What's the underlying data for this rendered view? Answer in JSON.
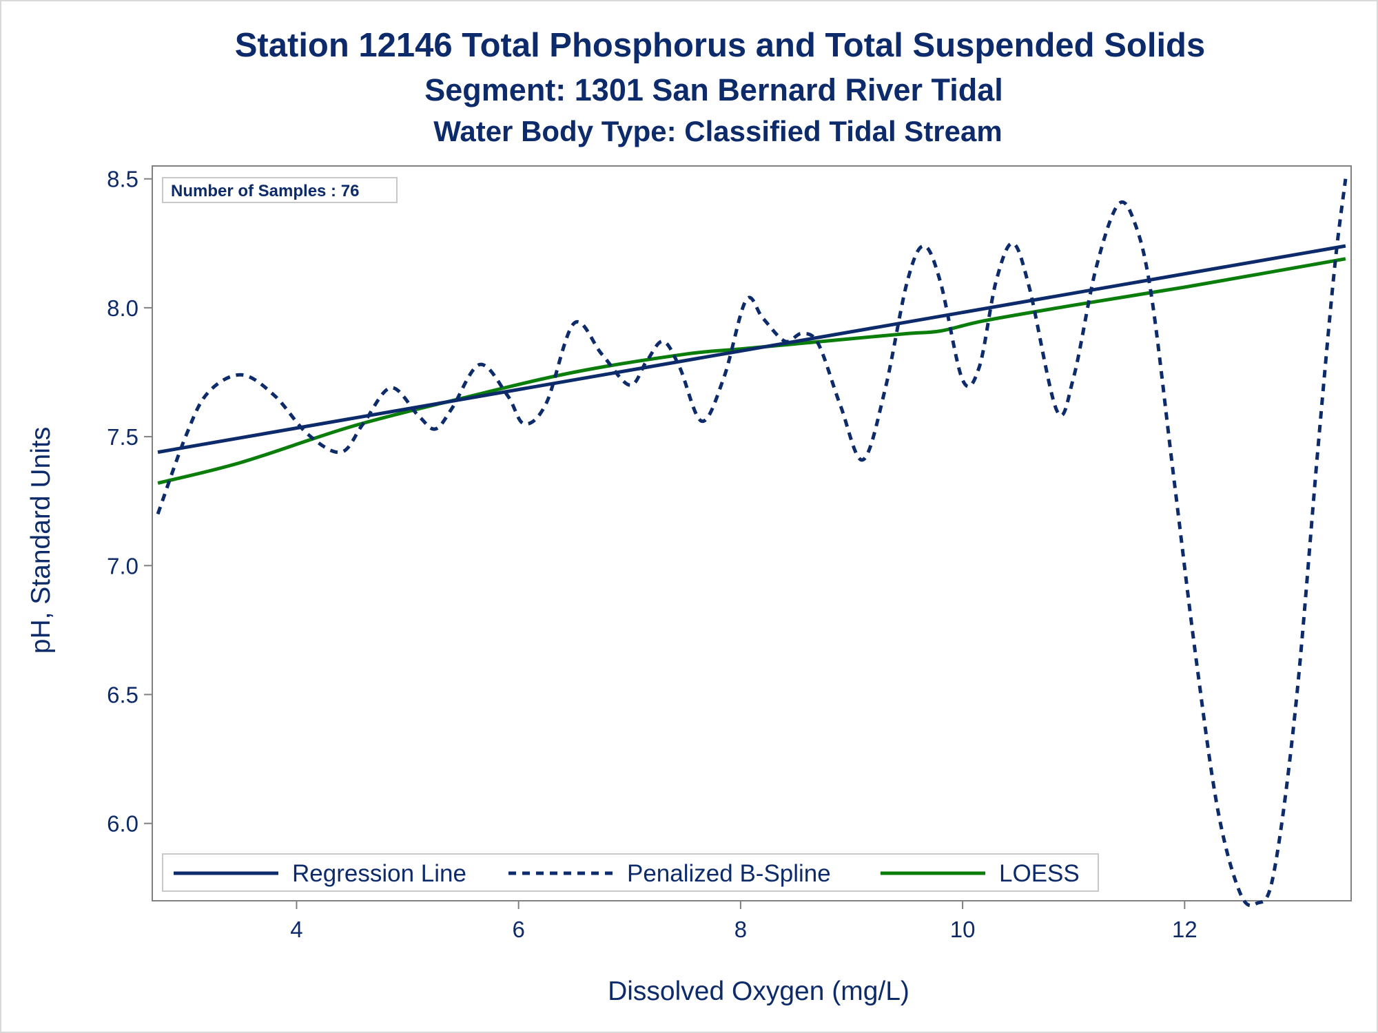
{
  "chart_data": {
    "type": "line",
    "title": "Station 12146  Total Phosphorus and Total Suspended Solids",
    "subtitle": "Segment: 1301  San Bernard River Tidal",
    "subtitle2": "Water Body Type: Classified Tidal Stream",
    "xlabel": "Dissolved Oxygen (mg/L)",
    "ylabel": "pH, Standard Units",
    "xlim": [
      2.7,
      13.5
    ],
    "ylim": [
      5.7,
      8.55
    ],
    "xticks": [
      4,
      6,
      8,
      10,
      12
    ],
    "yticks": [
      6.0,
      6.5,
      7.0,
      7.5,
      8.0,
      8.5
    ],
    "ytick_labels": [
      "6.0",
      "6.5",
      "7.0",
      "7.5",
      "8.0",
      "8.5"
    ],
    "annotation": "Number of Samples : 76",
    "grid": false,
    "legend_position": "bottom-inside",
    "series": [
      {
        "name": "Regression Line",
        "style": "solid",
        "color": "#0d2b6b",
        "x": [
          2.75,
          13.45
        ],
        "y": [
          7.44,
          8.24
        ]
      },
      {
        "name": "Penalized B-Spline",
        "style": "dashed",
        "color": "#0d2b6b",
        "x": [
          2.75,
          3.0,
          3.2,
          3.5,
          3.8,
          4.1,
          4.4,
          4.6,
          4.85,
          5.1,
          5.25,
          5.4,
          5.65,
          5.9,
          6.05,
          6.25,
          6.5,
          6.75,
          7.0,
          7.15,
          7.3,
          7.45,
          7.65,
          7.85,
          8.05,
          8.2,
          8.4,
          8.55,
          8.7,
          8.9,
          9.1,
          9.3,
          9.5,
          9.65,
          9.8,
          10.0,
          10.15,
          10.3,
          10.45,
          10.6,
          10.85,
          11.0,
          11.2,
          11.4,
          11.55,
          11.7,
          11.9,
          12.1,
          12.3,
          12.5,
          12.65,
          12.8,
          13.0,
          13.2,
          13.35,
          13.45
        ],
        "y": [
          7.2,
          7.5,
          7.67,
          7.74,
          7.66,
          7.51,
          7.44,
          7.55,
          7.69,
          7.58,
          7.53,
          7.61,
          7.78,
          7.66,
          7.55,
          7.63,
          7.94,
          7.82,
          7.7,
          7.79,
          7.87,
          7.77,
          7.56,
          7.73,
          8.03,
          7.96,
          7.87,
          7.9,
          7.86,
          7.62,
          7.41,
          7.68,
          8.1,
          8.24,
          8.1,
          7.72,
          7.77,
          8.1,
          8.25,
          8.08,
          7.6,
          7.73,
          8.15,
          8.4,
          8.33,
          8.05,
          7.35,
          6.65,
          6.05,
          5.73,
          5.69,
          5.8,
          6.45,
          7.45,
          8.15,
          8.5
        ]
      },
      {
        "name": "LOESS",
        "style": "solid",
        "color": "#0a7d0a",
        "x": [
          2.75,
          3.5,
          4.5,
          5.5,
          6.5,
          7.5,
          8.0,
          8.5,
          9.0,
          9.5,
          9.8,
          10.2,
          11.0,
          12.0,
          13.45
        ],
        "y": [
          7.32,
          7.4,
          7.54,
          7.65,
          7.75,
          7.82,
          7.84,
          7.86,
          7.88,
          7.9,
          7.91,
          7.95,
          8.01,
          8.08,
          8.19
        ]
      }
    ]
  }
}
